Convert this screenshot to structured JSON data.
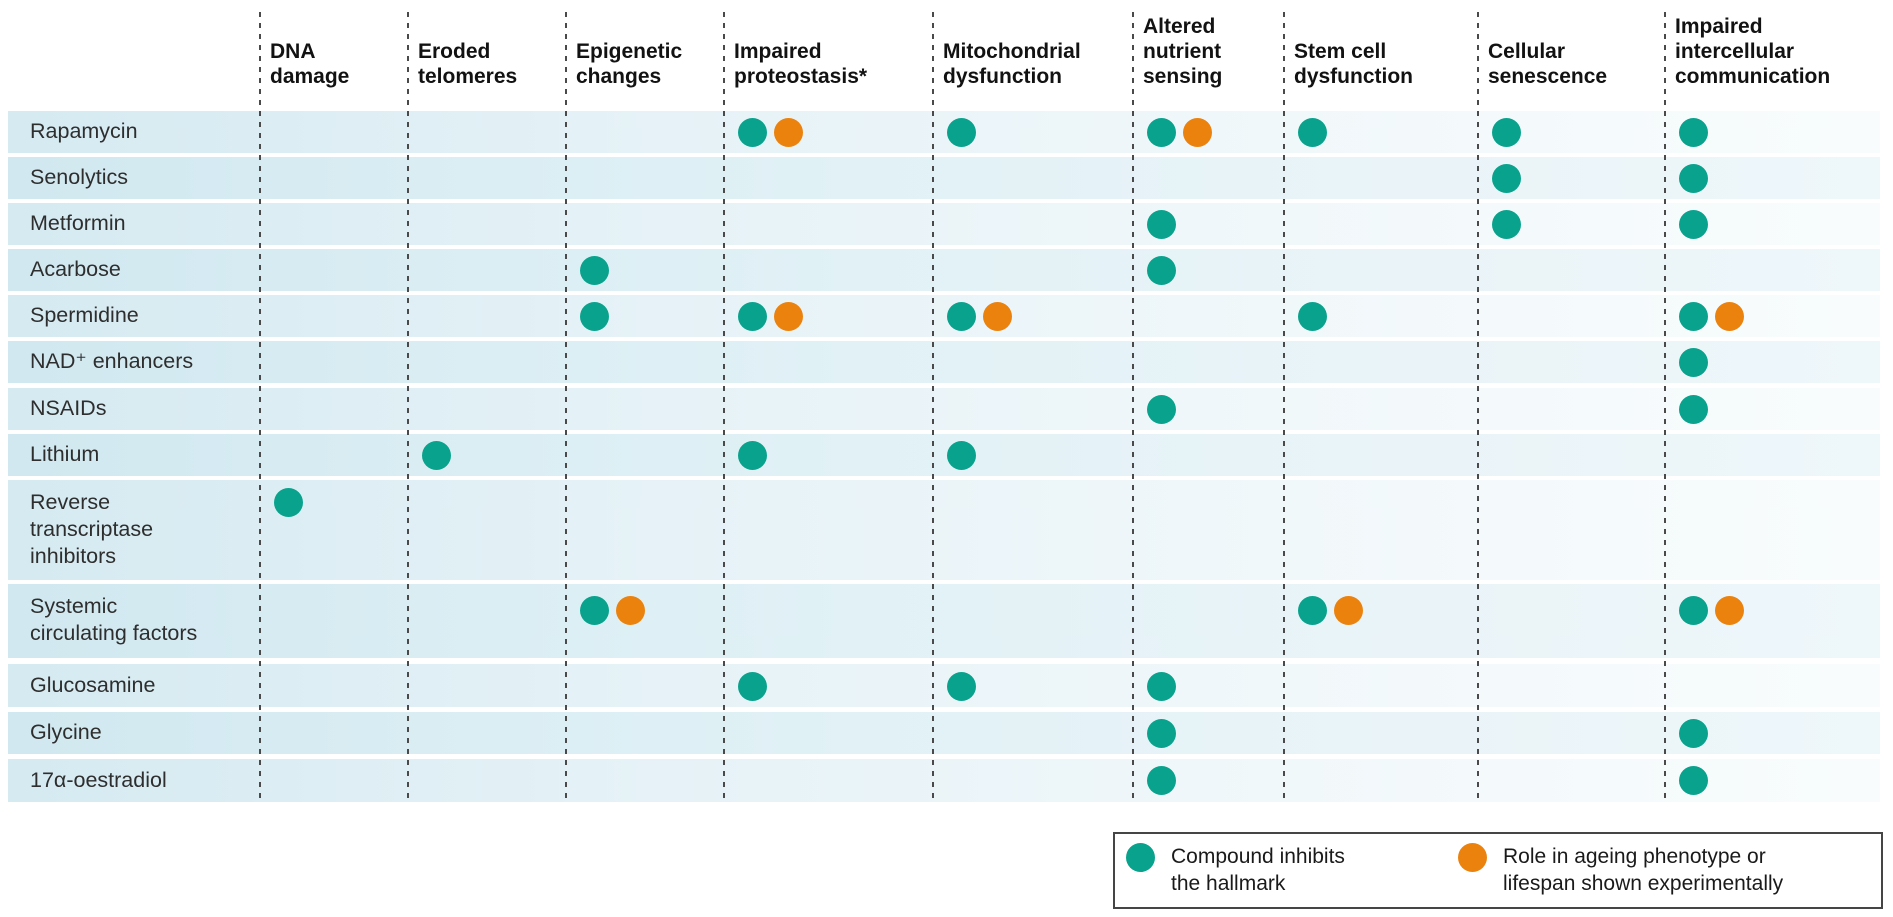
{
  "chart_data": {
    "type": "table",
    "description": "Dot-matrix table of compounds (rows) versus hallmarks of ageing (columns)",
    "mark_semantics": {
      "teal": "Compound inhibits the hallmark",
      "orange": "Role in ageing phenotype or lifespan shown experimentally"
    },
    "colors": {
      "teal": "#09a38d",
      "orange": "#eb820e"
    },
    "columns": [
      {
        "id": "dna",
        "label": "DNA\ndamage"
      },
      {
        "id": "telomeres",
        "label": "Eroded\ntelomeres"
      },
      {
        "id": "epigenetic",
        "label": "Epigenetic\nchanges"
      },
      {
        "id": "proteostasis",
        "label": "Impaired\nproteostasis*"
      },
      {
        "id": "mitochondrial",
        "label": "Mitochondrial\ndysfunction"
      },
      {
        "id": "nutrient",
        "label": "Altered\nnutrient\nsensing"
      },
      {
        "id": "stemcell",
        "label": "Stem cell\ndysfunction"
      },
      {
        "id": "senescence",
        "label": "Cellular\nsenescence"
      },
      {
        "id": "intercellular",
        "label": "Impaired\nintercellular\ncommunication"
      }
    ],
    "rows": [
      {
        "label": "Rapamycin",
        "marks": {
          "proteostasis": [
            "teal",
            "orange"
          ],
          "mitochondrial": [
            "teal"
          ],
          "nutrient": [
            "teal",
            "orange"
          ],
          "stemcell": [
            "teal"
          ],
          "senescence": [
            "teal"
          ],
          "intercellular": [
            "teal"
          ]
        }
      },
      {
        "label": "Senolytics",
        "marks": {
          "senescence": [
            "teal"
          ],
          "intercellular": [
            "teal"
          ]
        }
      },
      {
        "label": "Metformin",
        "marks": {
          "nutrient": [
            "teal"
          ],
          "senescence": [
            "teal"
          ],
          "intercellular": [
            "teal"
          ]
        }
      },
      {
        "label": "Acarbose",
        "marks": {
          "epigenetic": [
            "teal"
          ],
          "nutrient": [
            "teal"
          ]
        }
      },
      {
        "label": "Spermidine",
        "marks": {
          "epigenetic": [
            "teal"
          ],
          "proteostasis": [
            "teal",
            "orange"
          ],
          "mitochondrial": [
            "teal",
            "orange"
          ],
          "stemcell": [
            "teal"
          ],
          "intercellular": [
            "teal",
            "orange"
          ]
        }
      },
      {
        "label": "NAD⁺ enhancers",
        "marks": {
          "intercellular": [
            "teal"
          ]
        }
      },
      {
        "label": "NSAIDs",
        "marks": {
          "nutrient": [
            "teal"
          ],
          "intercellular": [
            "teal"
          ]
        }
      },
      {
        "label": "Lithium",
        "marks": {
          "telomeres": [
            "teal"
          ],
          "proteostasis": [
            "teal"
          ],
          "mitochondrial": [
            "teal"
          ]
        }
      },
      {
        "label": "Reverse\ntranscriptase\ninhibitors",
        "marks": {
          "dna": [
            "teal"
          ]
        }
      },
      {
        "label": "Systemic\ncirculating factors",
        "marks": {
          "epigenetic": [
            "teal",
            "orange"
          ],
          "stemcell": [
            "teal",
            "orange"
          ],
          "intercellular": [
            "teal",
            "orange"
          ]
        }
      },
      {
        "label": "Glucosamine",
        "marks": {
          "proteostasis": [
            "teal"
          ],
          "mitochondrial": [
            "teal"
          ],
          "nutrient": [
            "teal"
          ]
        }
      },
      {
        "label": "Glycine",
        "marks": {
          "nutrient": [
            "teal"
          ],
          "intercellular": [
            "teal"
          ]
        }
      },
      {
        "label": "17α-oestradiol",
        "marks": {
          "nutrient": [
            "teal"
          ],
          "intercellular": [
            "teal"
          ]
        }
      }
    ],
    "legend": [
      {
        "color_key": "teal",
        "label": "Compound inhibits\nthe hallmark"
      },
      {
        "color_key": "orange",
        "label": "Role in ageing phenotype or\nlifespan shown experimentally"
      }
    ]
  }
}
